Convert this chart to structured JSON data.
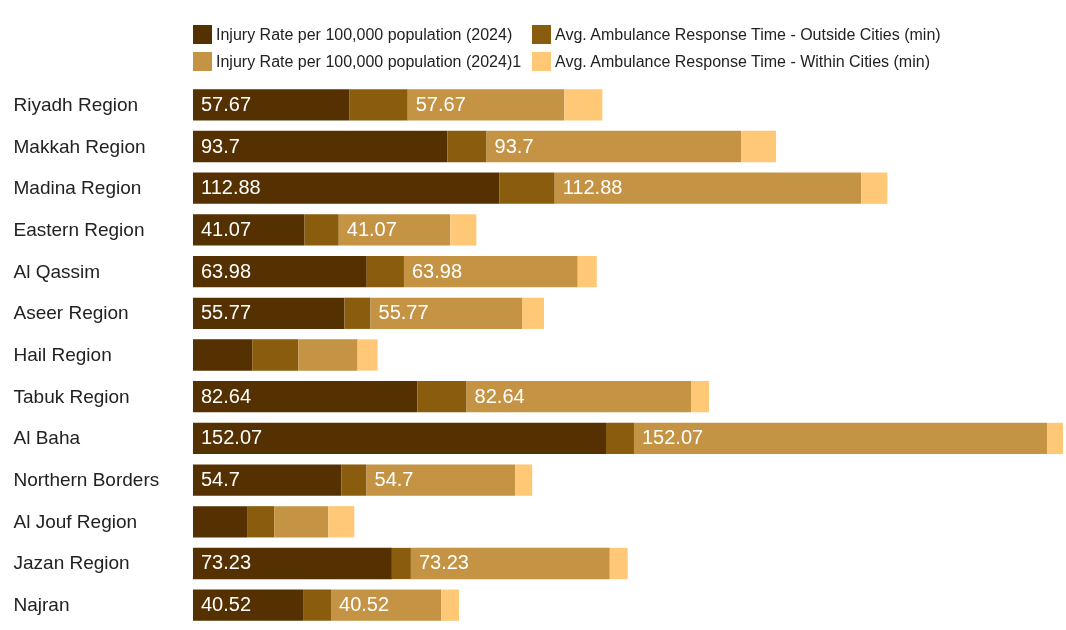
{
  "chart_data": {
    "type": "bar",
    "orientation": "horizontal",
    "stacked": true,
    "legend": "top",
    "categories": [
      "Riyadh Region",
      "Makkah Region",
      "Madina Region",
      "Eastern Region",
      "Al Qassim",
      "Aseer Region",
      "Hail Region",
      "Tabuk Region",
      "Al Baha",
      "Northern Borders",
      "Al Jouf Region",
      "Jazan Region",
      "Najran"
    ],
    "series": [
      {
        "name": "Injury Rate per 100,000 population (2024)",
        "color": "#553000",
        "values": [
          57.67,
          93.7,
          112.88,
          41.07,
          63.98,
          55.77,
          21.8,
          82.64,
          152.07,
          54.7,
          19.9,
          73.23,
          40.52
        ],
        "value_labels": [
          "57.67",
          "93.7",
          "112.88",
          "41.07",
          "63.98",
          "55.77",
          null,
          "82.64",
          "152.07",
          "54.7",
          null,
          "73.23",
          "40.52"
        ]
      },
      {
        "name": "Avg. Ambulance Response Time - Outside Cities (min)",
        "color": "#8a5d0e",
        "values": [
          21.4,
          14.4,
          20.3,
          12.6,
          13.7,
          9.6,
          17.0,
          18.1,
          10.3,
          9.2,
          10.0,
          7.0,
          10.3
        ]
      },
      {
        "name": "Injury Rate per 100,000 population (2024)1",
        "color": "#c49343",
        "values": [
          57.67,
          93.7,
          112.88,
          41.07,
          63.98,
          55.77,
          21.8,
          82.64,
          152.07,
          54.7,
          19.9,
          73.23,
          40.52
        ],
        "value_labels": [
          "57.67",
          "93.7",
          "112.88",
          "41.07",
          "63.98",
          "55.77",
          null,
          "82.64",
          "152.07",
          "54.7",
          null,
          "73.23",
          "40.52"
        ]
      },
      {
        "name": "Avg. Ambulance Response Time - Within Cities (min)",
        "color": "#fec877",
        "values": [
          14.0,
          12.9,
          9.6,
          9.6,
          7.0,
          8.1,
          7.4,
          6.6,
          5.9,
          6.3,
          9.6,
          6.6,
          6.6
        ]
      }
    ]
  }
}
